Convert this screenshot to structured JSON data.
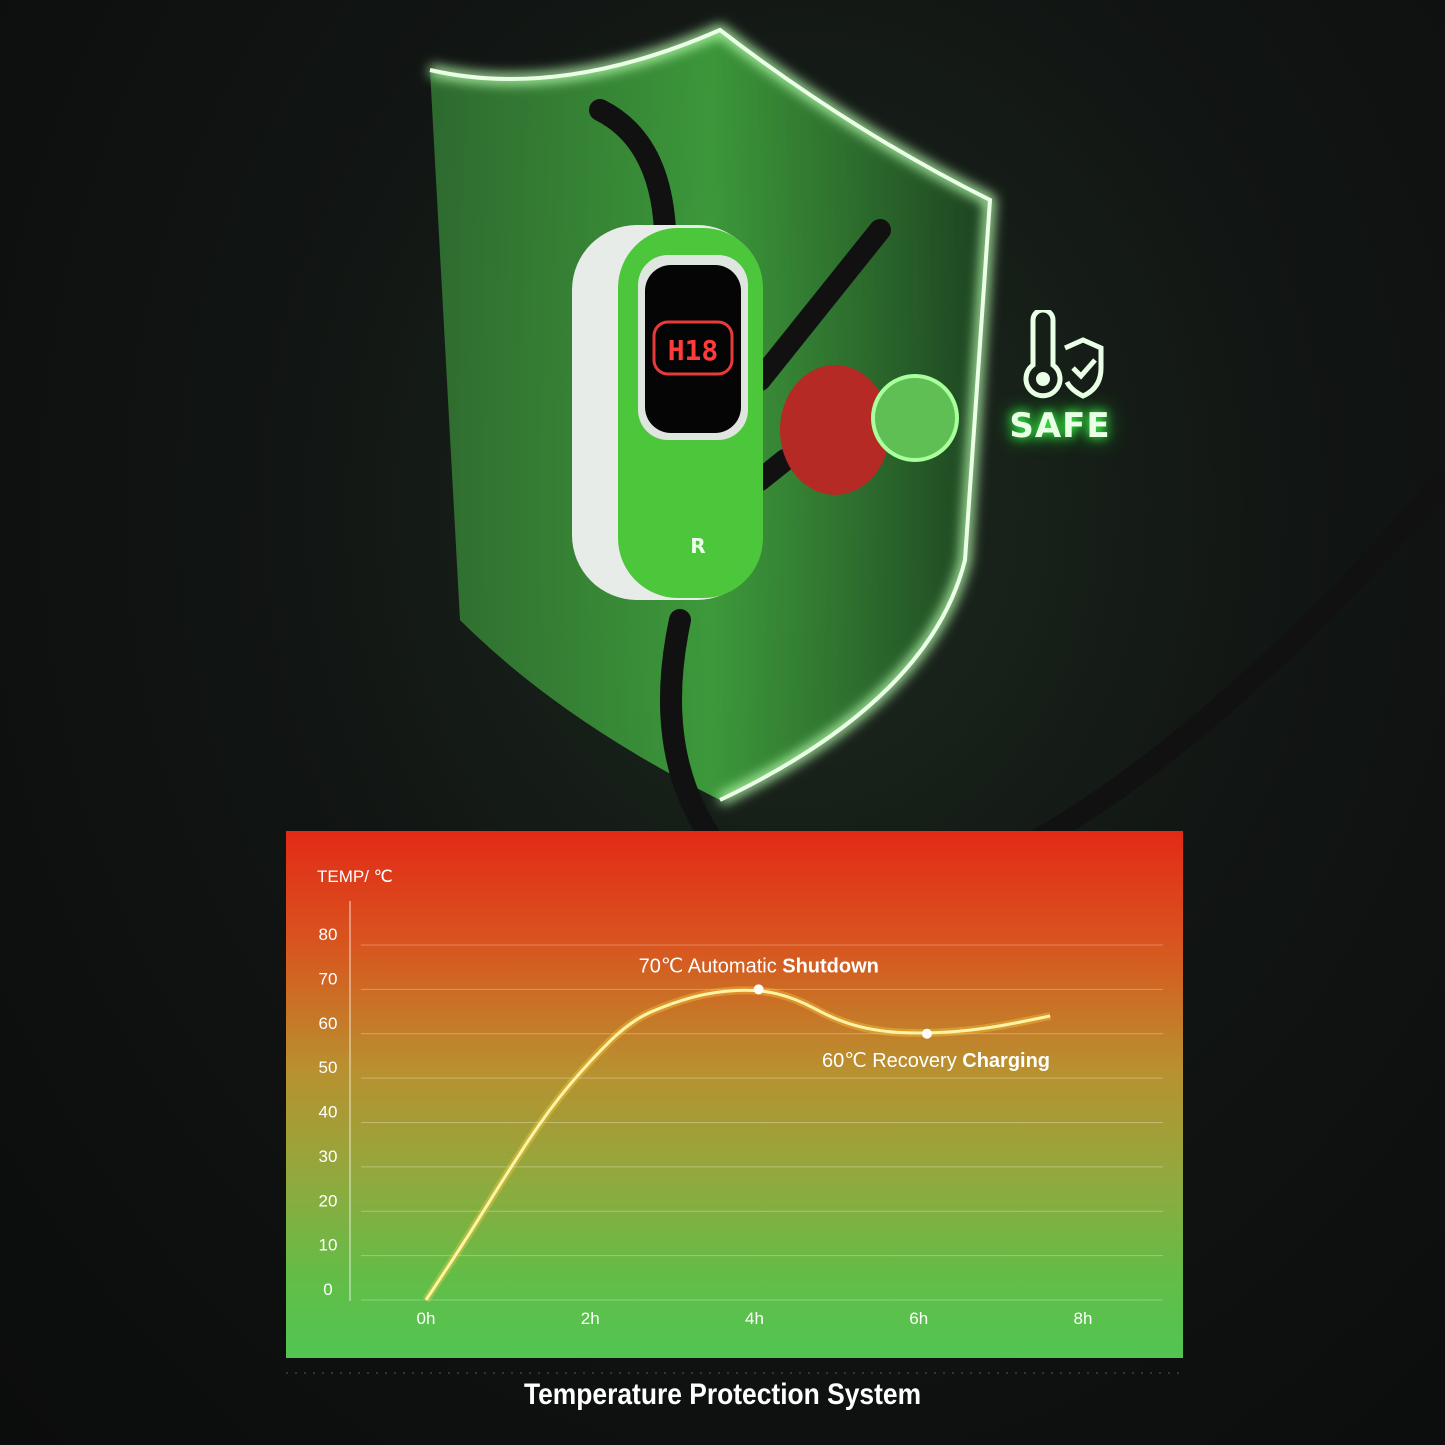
{
  "badge": {
    "label": "SAFE",
    "icon": "thermometer-shield-check-icon"
  },
  "device": {
    "display_text": "H18",
    "logo": "R"
  },
  "colors": {
    "panel_top": "#e22a17",
    "panel_bottom": "#52c552",
    "shield_glow": "#3cff4a",
    "device_green": "#4cc63a"
  },
  "title": "Temperature Protection System",
  "chart_data": {
    "type": "line",
    "ylabel": "TEMP/ ℃",
    "xlabel": "",
    "x_ticks": [
      "0h",
      "2h",
      "4h",
      "6h",
      "8h"
    ],
    "y_ticks": [
      0,
      10,
      20,
      30,
      40,
      50,
      60,
      70,
      80
    ],
    "xlim": [
      0,
      8
    ],
    "ylim": [
      0,
      80
    ],
    "grid": true,
    "series": [
      {
        "x": [
          0,
          0.5,
          1,
          1.5,
          2,
          2.5,
          3,
          3.5,
          4.05,
          4.5,
          5,
          5.5,
          6.1,
          6.8,
          7.6
        ],
        "y": [
          0,
          14,
          29,
          43,
          54,
          63,
          67,
          69.5,
          70,
          68,
          63,
          60.5,
          60,
          61,
          64
        ]
      }
    ],
    "annotations": [
      {
        "x": 4.05,
        "y": 70,
        "value": "70℃",
        "text": "Automatic",
        "bold": "Shutdown"
      },
      {
        "x": 6.1,
        "y": 60,
        "value": "60℃",
        "text": "Recovery",
        "bold": "Charging"
      }
    ]
  }
}
